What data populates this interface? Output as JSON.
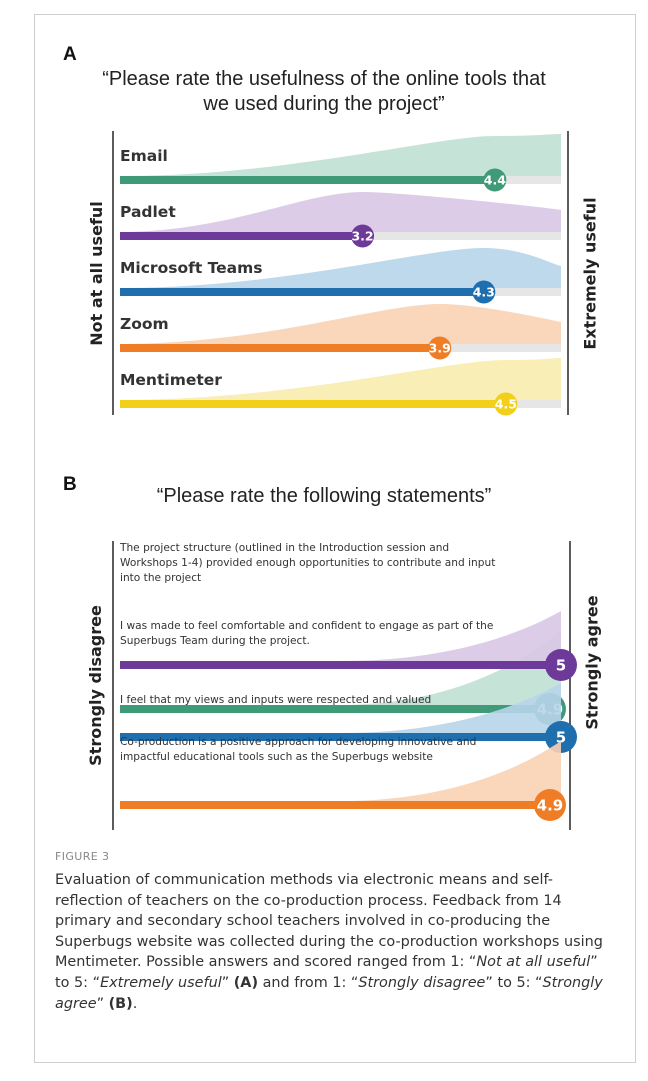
{
  "chart_data": [
    {
      "type": "bar",
      "panel_label": "A",
      "title": "“Please rate the usefulness of the online tools that we used during the project”",
      "axis_min_label": "Not at all useful",
      "axis_max_label": "Extremely useful",
      "xlim": [
        1,
        5
      ],
      "categories": [
        "Email",
        "Padlet",
        "Microsoft Teams",
        "Zoom",
        "Mentimeter"
      ],
      "values": [
        4.4,
        3.2,
        4.3,
        3.9,
        4.5
      ],
      "value_labels": [
        "4.4",
        "3.2",
        "4.3",
        "3.9",
        "4.5"
      ],
      "colors": [
        "#3f9a77",
        "#6e3a9a",
        "#1f6fae",
        "#ef7d25",
        "#f2cf18"
      ],
      "distribution_colors": [
        "#bfe0d2",
        "#d9c6e6",
        "#b7d5ea",
        "#f9d2b4",
        "#f8ecad"
      ]
    },
    {
      "type": "bar",
      "panel_label": "B",
      "title": "“Please rate the following statements”",
      "axis_min_label": "Strongly disagree",
      "axis_max_label": "Strongly agree",
      "xlim": [
        1,
        5
      ],
      "categories": [
        "The project structure (outlined in the Introduction session and Workshops 1-4) provided enough opportunities to contribute and input into the project",
        "I was made to feel comfortable and confident to engage as part of the Superbugs Team during the project.",
        "I feel that my views and inputs were respected and valued",
        "Co-production is a positive approach for developing innovative and impactful educational tools such as the Superbugs website"
      ],
      "values": [
        4.9,
        5,
        5,
        4.9
      ],
      "value_labels": [
        "4.9",
        "5",
        "5",
        "4.9"
      ],
      "colors": [
        "#3f9a77",
        "#6e3a9a",
        "#1f6fae",
        "#ef7d25"
      ],
      "distribution_colors": [
        "#bfe0d2",
        "#d9c6e6",
        "#b7d5ea",
        "#f9d2b4"
      ]
    }
  ],
  "caption": {
    "figure_label": "FIGURE 3",
    "parts": [
      {
        "text": "Evaluation of communication methods via electronic means and self-reflection of teachers on the co-production process. Feedback from 14 primary and secondary school teachers involved in co-producing the Superbugs website was collected during the co-production workshops using Mentimeter. Possible answers and scored ranged from 1: “",
        "style": "normal"
      },
      {
        "text": "Not at all useful",
        "style": "italic"
      },
      {
        "text": "” to 5: “",
        "style": "normal"
      },
      {
        "text": "Extremely useful",
        "style": "italic"
      },
      {
        "text": "” ",
        "style": "normal"
      },
      {
        "text": "(A)",
        "style": "bold"
      },
      {
        "text": " and from 1: “",
        "style": "normal"
      },
      {
        "text": "Strongly disagree",
        "style": "italic"
      },
      {
        "text": "” to 5: “",
        "style": "normal"
      },
      {
        "text": "Strongly agree",
        "style": "italic"
      },
      {
        "text": "” ",
        "style": "normal"
      },
      {
        "text": "(B)",
        "style": "bold"
      },
      {
        "text": ".",
        "style": "normal"
      }
    ]
  }
}
